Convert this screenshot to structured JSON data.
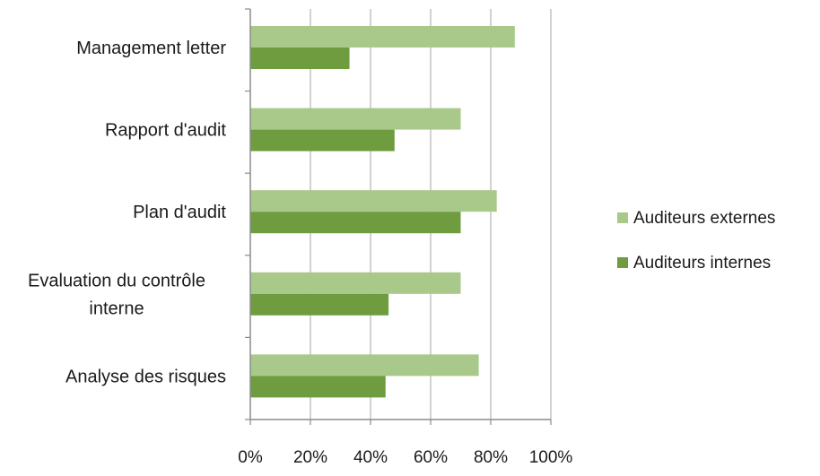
{
  "chart_data": {
    "type": "bar",
    "orientation": "horizontal",
    "categories": [
      "Management letter",
      "Rapport d'audit",
      "Plan d'audit",
      "Evaluation du contrôle interne",
      "Analyse des risques"
    ],
    "category_label_lines": [
      [
        "Management letter"
      ],
      [
        "Rapport d'audit"
      ],
      [
        "Plan d'audit"
      ],
      [
        "Evaluation du contrôle",
        "interne"
      ],
      [
        "Analyse des risques"
      ]
    ],
    "series": [
      {
        "name": "Auditeurs externes",
        "color": "#a9c98a",
        "values": [
          88,
          70,
          82,
          70,
          76
        ]
      },
      {
        "name": "Auditeurs internes",
        "color": "#6f9c3f",
        "values": [
          33,
          48,
          70,
          46,
          45
        ]
      }
    ],
    "x_ticks": [
      "0%",
      "20%",
      "40%",
      "60%",
      "80%",
      "100%"
    ],
    "xlim": [
      0,
      100
    ],
    "grid": "vertical",
    "legend_position": "right"
  }
}
